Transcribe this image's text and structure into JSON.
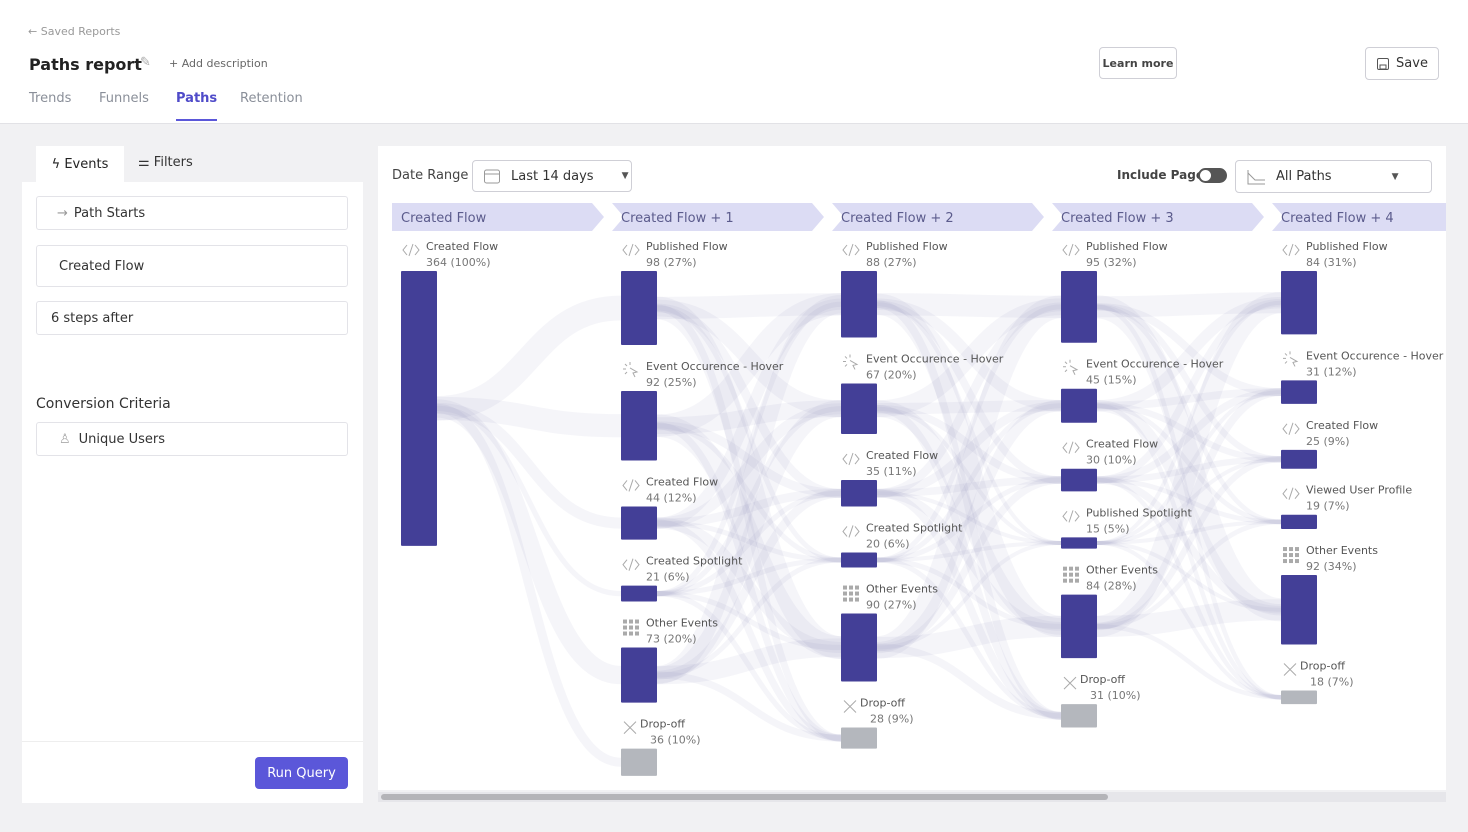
{
  "breadcrumb": "Saved Reports",
  "header": {
    "title": "Paths report",
    "add_description": "Add description",
    "learn_more": "Learn more",
    "save": "Save"
  },
  "tabs": [
    "Trends",
    "Funnels",
    "Paths",
    "Retention"
  ],
  "active_tab": 2,
  "sidebar": {
    "tabs": [
      "Events",
      "Filters"
    ],
    "path_starts": "Path Starts",
    "event": "Created Flow",
    "steps": "6 steps after",
    "conversion_title": "Conversion Criteria",
    "conversion_value": "Unique Users",
    "run": "Run Query"
  },
  "controls": {
    "date_range_label": "Date Range",
    "date_range": "Last 14 days",
    "include_pages": "Include Pages",
    "paths": "All Paths"
  },
  "columns": [
    {
      "title": "Created Flow",
      "nodes": [
        {
          "name": "Created Flow",
          "kind": "code",
          "count": 364,
          "stat": "364 (100%)"
        }
      ]
    },
    {
      "title": "Created Flow + 1",
      "nodes": [
        {
          "name": "Published Flow",
          "kind": "code",
          "count": 98,
          "stat": "98 (27%)"
        },
        {
          "name": "Event Occurence - Hover",
          "kind": "hover",
          "count": 92,
          "stat": "92 (25%)"
        },
        {
          "name": "Created Flow",
          "kind": "code",
          "count": 44,
          "stat": "44 (12%)"
        },
        {
          "name": "Created Spotlight",
          "kind": "code",
          "count": 21,
          "stat": "21 (6%)"
        },
        {
          "name": "Other Events",
          "kind": "grid",
          "count": 73,
          "stat": "73 (20%)"
        },
        {
          "name": "Drop-off",
          "kind": "dropoff",
          "count": 36,
          "stat": "36 (10%)"
        }
      ]
    },
    {
      "title": "Created Flow + 2",
      "nodes": [
        {
          "name": "Published Flow",
          "kind": "code",
          "count": 88,
          "stat": "88 (27%)"
        },
        {
          "name": "Event Occurence - Hover",
          "kind": "hover",
          "count": 67,
          "stat": "67 (20%)"
        },
        {
          "name": "Created Flow",
          "kind": "code",
          "count": 35,
          "stat": "35 (11%)"
        },
        {
          "name": "Created Spotlight",
          "kind": "code",
          "count": 20,
          "stat": "20 (6%)"
        },
        {
          "name": "Other Events",
          "kind": "grid",
          "count": 90,
          "stat": "90 (27%)"
        },
        {
          "name": "Drop-off",
          "kind": "dropoff",
          "count": 28,
          "stat": "28 (9%)"
        }
      ]
    },
    {
      "title": "Created Flow + 3",
      "nodes": [
        {
          "name": "Published Flow",
          "kind": "code",
          "count": 95,
          "stat": "95 (32%)"
        },
        {
          "name": "Event Occurence - Hover",
          "kind": "hover",
          "count": 45,
          "stat": "45 (15%)"
        },
        {
          "name": "Created Flow",
          "kind": "code",
          "count": 30,
          "stat": "30 (10%)"
        },
        {
          "name": "Published Spotlight",
          "kind": "code",
          "count": 15,
          "stat": "15 (5%)"
        },
        {
          "name": "Other Events",
          "kind": "grid",
          "count": 84,
          "stat": "84 (28%)"
        },
        {
          "name": "Drop-off",
          "kind": "dropoff",
          "count": 31,
          "stat": "31 (10%)"
        }
      ]
    },
    {
      "title": "Created Flow + 4",
      "nodes": [
        {
          "name": "Published Flow",
          "kind": "code",
          "count": 84,
          "stat": "84 (31%)"
        },
        {
          "name": "Event Occurence - Hover",
          "kind": "hover",
          "count": 31,
          "stat": "31 (12%)"
        },
        {
          "name": "Created Flow",
          "kind": "code",
          "count": 25,
          "stat": "25 (9%)"
        },
        {
          "name": "Viewed User Profile",
          "kind": "code",
          "count": 19,
          "stat": "19 (7%)"
        },
        {
          "name": "Other Events",
          "kind": "grid",
          "count": 92,
          "stat": "92 (34%)"
        },
        {
          "name": "Drop-off",
          "kind": "dropoff",
          "count": 18,
          "stat": "18 (7%)"
        }
      ]
    }
  ]
}
